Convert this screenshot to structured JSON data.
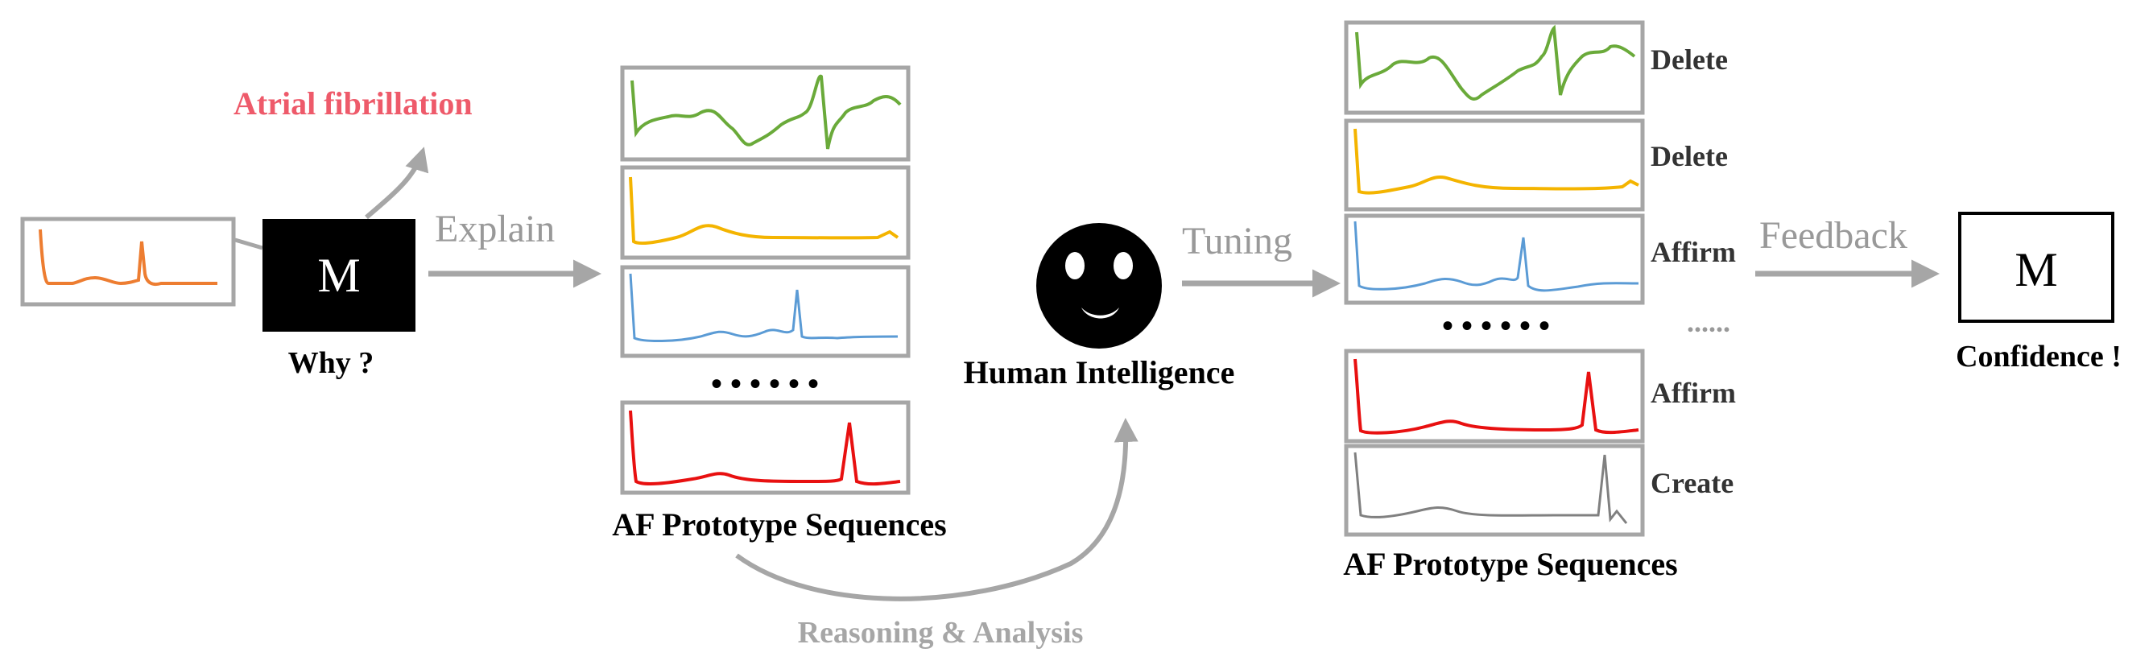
{
  "input_label": "Atrial fibrillation",
  "model_label": "M",
  "why_label": "Why ?",
  "explain_label": "Explain",
  "dots": "• • • • • •",
  "prototype_title_left": "AF Prototype Sequences",
  "human_label": "Human Intelligence",
  "tuning_label": "Tuning",
  "reasoning_label": "Reasoning & Analysis",
  "actions": [
    "Delete",
    "Delete",
    "Affirm",
    "Affirm",
    "Create"
  ],
  "action_dots": "......",
  "prototype_title_right": "AF Prototype Sequences",
  "feedback_label": "Feedback",
  "model_label_right": "M",
  "confidence_label": "Confidence !",
  "colors": {
    "green": "#6aaa3a",
    "yellow": "#f4b400",
    "blue": "#5b9bd5",
    "red": "#e81010",
    "gray": "#808080",
    "orange": "#ed7d31",
    "pink": "#ee5a6a",
    "arrow": "#a6a6a6",
    "box": "#a6a6a6"
  }
}
